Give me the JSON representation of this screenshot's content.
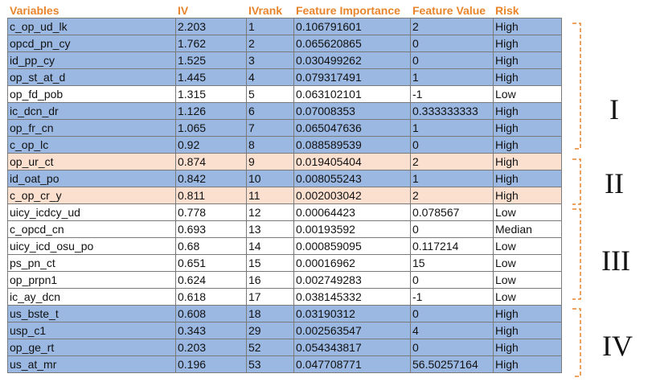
{
  "table": {
    "headers": [
      "Variables",
      "IV",
      "IVrank",
      "Feature Importance",
      "Feature Value",
      "Risk"
    ],
    "rows": [
      {
        "group": "blue",
        "cells": [
          "c_op_ud_lk",
          "2.203",
          "1",
          "0.106791601",
          "2",
          "High"
        ]
      },
      {
        "group": "blue",
        "cells": [
          "opcd_pn_cy",
          "1.762",
          "2",
          "0.065620865",
          "0",
          "High"
        ]
      },
      {
        "group": "blue",
        "cells": [
          "id_pp_cy",
          "1.525",
          "3",
          "0.030499262",
          "0",
          "High"
        ]
      },
      {
        "group": "blue",
        "cells": [
          "op_st_at_d",
          "1.445",
          "4",
          "0.079317491",
          "1",
          "High"
        ]
      },
      {
        "group": "white",
        "cells": [
          "op_fd_pob",
          "1.315",
          "5",
          "0.063102101",
          "-1",
          "Low"
        ]
      },
      {
        "group": "blue",
        "cells": [
          "ic_dcn_dr",
          "1.126",
          "6",
          "0.07008353",
          "0.333333333",
          "High"
        ]
      },
      {
        "group": "blue",
        "cells": [
          "op_fr_cn",
          "1.065",
          "7",
          "0.065047636",
          "1",
          "High"
        ]
      },
      {
        "group": "blue",
        "cells": [
          "c_op_lc",
          "0.92",
          "8",
          "0.088589539",
          "0",
          "High"
        ]
      },
      {
        "group": "peach",
        "cells": [
          "op_ur_ct",
          "0.874",
          "9",
          "0.019405404",
          "2",
          "High"
        ]
      },
      {
        "group": "blue",
        "cells": [
          "id_oat_po",
          "0.842",
          "10",
          "0.008055243",
          "1",
          "High"
        ]
      },
      {
        "group": "peach",
        "cells": [
          "c_op_cr_y",
          "0.811",
          "11",
          "0.002003042",
          "2",
          "High"
        ]
      },
      {
        "group": "white",
        "cells": [
          "uicy_icdcy_ud",
          "0.778",
          "12",
          "0.00064423",
          "0.078567",
          "Low"
        ]
      },
      {
        "group": "white",
        "cells": [
          "c_opcd_cn",
          "0.693",
          "13",
          "0.00193592",
          "0",
          "Median"
        ]
      },
      {
        "group": "white",
        "cells": [
          "uicy_icd_osu_po",
          "0.68",
          "14",
          "0.000859095",
          "0.117214",
          "Low"
        ]
      },
      {
        "group": "white",
        "cells": [
          "ps_pn_ct",
          "0.651",
          "15",
          "0.00016962",
          "15",
          "Low"
        ]
      },
      {
        "group": "white",
        "cells": [
          "op_prpn1",
          "0.624",
          "16",
          "0.002749283",
          "0",
          "Low"
        ]
      },
      {
        "group": "white",
        "cells": [
          "ic_ay_dcn",
          "0.618",
          "17",
          "0.038145332",
          "-1",
          "Low"
        ]
      },
      {
        "group": "blue",
        "cells": [
          "us_bste_t",
          "0.608",
          "18",
          "0.03190312",
          "0",
          "High"
        ]
      },
      {
        "group": "blue",
        "cells": [
          "usp_c1",
          "0.343",
          "29",
          "0.002563547",
          "4",
          "High"
        ]
      },
      {
        "group": "blue",
        "cells": [
          "op_ge_rt",
          "0.203",
          "52",
          "0.054343817",
          "0",
          "High"
        ]
      },
      {
        "group": "blue",
        "cells": [
          "us_at_mr",
          "0.196",
          "53",
          "0.047708771",
          "56.50257164",
          "High"
        ]
      }
    ]
  },
  "groups": [
    {
      "label": "I"
    },
    {
      "label": "II"
    },
    {
      "label": "III"
    },
    {
      "label": "IV"
    }
  ],
  "colors": {
    "header_text": "#e8842a",
    "high_row": "#9ab8e2",
    "highlight_row": "#fbe0d0",
    "bracket": "#e8842a"
  }
}
